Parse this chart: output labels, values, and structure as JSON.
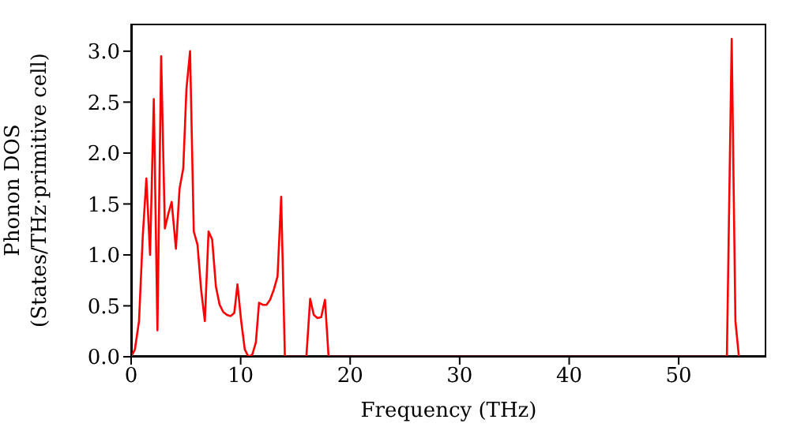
{
  "chart_data": {
    "type": "line",
    "xlabel": "Frequency (THz)",
    "ylabel": "Phonon DOS\n(States/THz·primitive cell)",
    "x": [
      0,
      0.34,
      0.72,
      1.06,
      1.39,
      1.73,
      2.07,
      2.4,
      2.74,
      3.08,
      3.41,
      3.7,
      4.09,
      4.42,
      4.76,
      5.05,
      5.38,
      5.72,
      6.06,
      6.39,
      6.73,
      7.07,
      7.4,
      7.74,
      8.08,
      8.41,
      8.75,
      9.09,
      9.42,
      9.71,
      10.05,
      10.38,
      10.72,
      11.06,
      11.39,
      11.68,
      12.02,
      12.36,
      12.69,
      13.03,
      13.37,
      13.7,
      14.04,
      16.0,
      16.35,
      16.68,
      17.02,
      17.36,
      17.7,
      18.03,
      54.4,
      54.84,
      55.18,
      55.5
    ],
    "series": [
      {
        "color": "#ff0000",
        "values": [
          0,
          0.07,
          0.35,
          1.18,
          1.75,
          1.0,
          2.53,
          0.26,
          2.95,
          1.26,
          1.41,
          1.52,
          1.06,
          1.65,
          1.85,
          2.63,
          3.0,
          1.23,
          1.1,
          0.66,
          0.35,
          1.23,
          1.15,
          0.69,
          0.51,
          0.44,
          0.41,
          0.4,
          0.43,
          0.71,
          0.35,
          0.07,
          0,
          0.02,
          0.14,
          0.53,
          0.51,
          0.51,
          0.56,
          0.66,
          0.79,
          1.57,
          0,
          0,
          0.57,
          0.41,
          0.38,
          0.39,
          0.56,
          0,
          0,
          3.12,
          0.35,
          0
        ]
      }
    ],
    "xlim": [
      0,
      58
    ],
    "xticks": [
      0,
      10,
      20,
      30,
      40,
      50
    ],
    "ylim": [
      0,
      3.27
    ],
    "yticks": [
      {
        "value": 0,
        "label": "0.0"
      },
      {
        "value": 0.5,
        "label": "0.5"
      },
      {
        "value": 1,
        "label": "1.0"
      },
      {
        "value": 1.5,
        "label": "1.5"
      },
      {
        "value": 2,
        "label": "2.0"
      },
      {
        "value": 2.5,
        "label": "2.5"
      },
      {
        "value": 3,
        "label": "3.0"
      }
    ],
    "grid": false,
    "legend": false,
    "marker": "none",
    "line_style": "solid"
  }
}
